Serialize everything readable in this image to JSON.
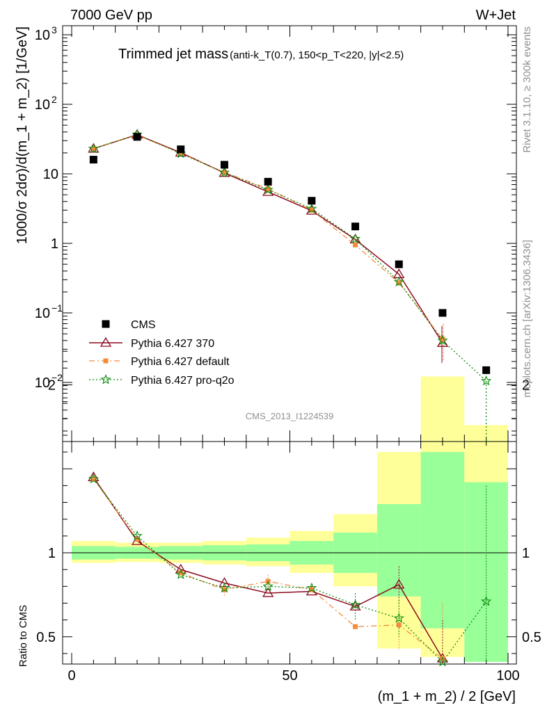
{
  "header": {
    "left": "7000 GeV pp",
    "right": "W+Jet"
  },
  "side": {
    "rivet": "Rivet 3.1.10, ≥ 300k events",
    "mcplots": "mcplots.cern.ch [arXiv:1306.3436]"
  },
  "watermark": "CMS_2013_I1224539",
  "colors": {
    "data": "#000000",
    "p370": "#8b0a1e",
    "pdefault": "#f58a3c",
    "pproq2o": "#0a8a0a",
    "band_green": "#99ff99",
    "band_yellow": "#ffff99"
  },
  "chart_data": [
    {
      "type": "scatter",
      "title": "Trimmed jet mass",
      "title_suffix": "(anti-k_T(0.7), 150<p_T<220, |y|<2.5)",
      "xlabel": "(m_1 + m_2) / 2 [GeV]",
      "ylabel": "1000/σ 2dσ)/d(m_1 + m_2) [1/GeV]",
      "yscale": "log",
      "xlim": [
        0,
        100
      ],
      "ylim": [
        0.0015,
        1300
      ],
      "y_ticks": [
        "10^-2",
        "10^-1",
        "1",
        "10",
        "10^2",
        "10^3"
      ],
      "legend": [
        "CMS",
        "Pythia 6.427 370",
        "Pythia 6.427 default",
        "Pythia 6.427 pro-q2o"
      ],
      "legend_position": "lower-left",
      "x": [
        5,
        15,
        25,
        35,
        45,
        55,
        65,
        75,
        85,
        95
      ],
      "series": [
        {
          "name": "CMS",
          "style": "square",
          "values": [
            16,
            34,
            22.5,
            13.5,
            7.7,
            4.1,
            1.75,
            0.5,
            0.1,
            0.015
          ]
        },
        {
          "name": "Pythia 6.427 370",
          "style": "triangle",
          "values": [
            23,
            36.5,
            20.2,
            10.3,
            5.5,
            2.95,
            1.14,
            0.36,
            0.037,
            null
          ]
        },
        {
          "name": "Pythia 6.427 default",
          "style": "dashdot",
          "values": [
            23,
            36,
            19.8,
            10.5,
            6.1,
            3.0,
            0.95,
            0.27,
            0.042,
            null
          ]
        },
        {
          "name": "Pythia 6.427 pro-q2o",
          "style": "dotted-star",
          "values": [
            23,
            36.8,
            19.6,
            10.4,
            5.9,
            3.15,
            1.16,
            0.28,
            0.04,
            0.0105
          ]
        }
      ]
    },
    {
      "type": "line",
      "ylabel": "Ratio to CMS",
      "xlabel": "(m_1 + m_2) / 2 [GeV]",
      "xlim": [
        0,
        100
      ],
      "ylim": [
        0.35,
        2.3
      ],
      "x_ticks": [
        "0",
        "50",
        "100"
      ],
      "y_ticks": [
        "0.5",
        "1",
        "2"
      ],
      "x": [
        5,
        15,
        25,
        35,
        45,
        55,
        65,
        75,
        85,
        95
      ],
      "bands": {
        "green": [
          [
            0.96,
            1.04
          ],
          [
            0.965,
            1.035
          ],
          [
            0.96,
            1.04
          ],
          [
            0.955,
            1.045
          ],
          [
            0.95,
            1.05
          ],
          [
            0.93,
            1.07
          ],
          [
            0.88,
            1.12
          ],
          [
            0.74,
            1.29
          ],
          [
            0.55,
            1.6
          ],
          [
            0.35,
            1.42
          ]
        ],
        "yellow": [
          [
            0.94,
            1.07
          ],
          [
            0.945,
            1.06
          ],
          [
            0.94,
            1.06
          ],
          [
            0.93,
            1.07
          ],
          [
            0.92,
            1.09
          ],
          [
            0.88,
            1.13
          ],
          [
            0.8,
            1.23
          ],
          [
            0.43,
            1.6
          ],
          [
            0.38,
            2.05
          ],
          [
            0.67,
            1.76
          ]
        ]
      },
      "series": [
        {
          "name": "Pythia 6.427 370",
          "values": [
            1.45,
            1.07,
            0.9,
            0.82,
            0.76,
            0.77,
            0.68,
            0.81,
            0.37,
            null
          ]
        },
        {
          "name": "Pythia 6.427 default",
          "values": [
            1.44,
            1.08,
            0.88,
            0.78,
            0.83,
            0.78,
            0.56,
            0.57,
            0.37,
            null
          ]
        },
        {
          "name": "Pythia 6.427 pro-q2o",
          "values": [
            1.44,
            1.1,
            0.87,
            0.79,
            0.8,
            0.79,
            0.69,
            0.61,
            0.35,
            0.71
          ]
        }
      ]
    }
  ]
}
